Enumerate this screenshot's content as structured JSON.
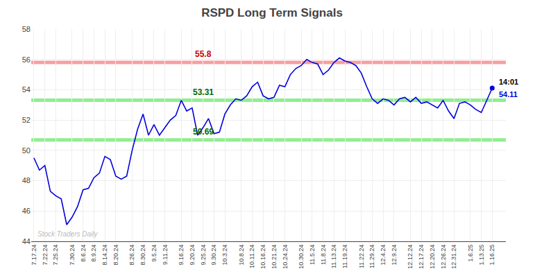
{
  "chart_data": {
    "type": "line",
    "title": "RSPD Long Term Signals",
    "color": "#0000dd",
    "categories": [
      "7.17.24",
      null,
      "7.22.24",
      null,
      "7.25.24",
      null,
      null,
      "7.30.24",
      null,
      "8.6.24",
      null,
      "8.9.24",
      null,
      "8.14.24",
      null,
      "8.20.24",
      null,
      null,
      "8.26.24",
      null,
      "8.30.24",
      null,
      "9.5.24",
      null,
      "9.11.24",
      null,
      null,
      "9.16.24",
      null,
      "9.20.24",
      null,
      "9.25.24",
      null,
      "9.30.24",
      null,
      "10.3.24",
      null,
      null,
      "10.8.24",
      null,
      "10.11.24",
      null,
      "10.16.24",
      null,
      "10.21.24",
      null,
      "10.24.24",
      null,
      null,
      "10.30.24",
      null,
      "11.5.24",
      null,
      "11.8.24",
      null,
      "11.13.24",
      null,
      "11.19.24",
      null,
      null,
      "11.22.24",
      null,
      "11.29.24",
      null,
      "12.4.24",
      null,
      "12.9.24",
      null,
      null,
      "12.12.24",
      null,
      "12.17.24",
      null,
      "12.20.24",
      null,
      "12.26.24",
      null,
      "12.31.24",
      null,
      null,
      "1.6.25",
      null,
      "1.13.25",
      null,
      "1.16.25"
    ],
    "values": [
      49.5,
      48.7,
      49.0,
      47.3,
      47.0,
      46.8,
      45.1,
      45.6,
      46.3,
      47.4,
      47.5,
      48.2,
      48.5,
      49.6,
      49.4,
      48.3,
      48.1,
      48.3,
      50.0,
      51.4,
      52.4,
      51.0,
      51.7,
      51.0,
      51.5,
      52.0,
      52.3,
      53.3,
      52.6,
      52.8,
      51.0,
      51.5,
      52.1,
      51.1,
      51.2,
      52.4,
      53.0,
      53.4,
      53.3,
      53.6,
      54.2,
      54.5,
      53.6,
      53.4,
      53.5,
      54.3,
      54.2,
      55.0,
      55.4,
      55.6,
      56.0,
      55.8,
      55.7,
      55.0,
      55.3,
      55.8,
      56.1,
      55.9,
      55.8,
      55.6,
      55.1,
      54.2,
      53.4,
      53.1,
      53.4,
      53.3,
      53.0,
      53.4,
      53.5,
      53.2,
      53.5,
      53.1,
      53.2,
      53.0,
      52.8,
      53.3,
      52.6,
      52.1,
      53.1,
      53.2,
      53.0,
      52.7,
      52.5,
      53.3,
      54.11
    ],
    "hlines": [
      {
        "value": 55.8,
        "label": "55.8",
        "color": "#f4a0a0",
        "label_color": "#cc0000"
      },
      {
        "value": 53.31,
        "label": "53.31",
        "color": "#90ee90",
        "label_color": "#006600"
      },
      {
        "value": 50.69,
        "label": "50.69",
        "color": "#90ee90",
        "label_color": "#006600"
      }
    ],
    "last_time_label": "14:01",
    "last_price_label": "54.11",
    "last_price_color": "#0000dd",
    "watermark": "Stock Traders Daily",
    "watermark_color": "#bbbbbb",
    "ylim": [
      44,
      58
    ],
    "yticks": [
      44,
      46,
      48,
      50,
      52,
      54,
      56,
      58
    ],
    "grid": true
  }
}
